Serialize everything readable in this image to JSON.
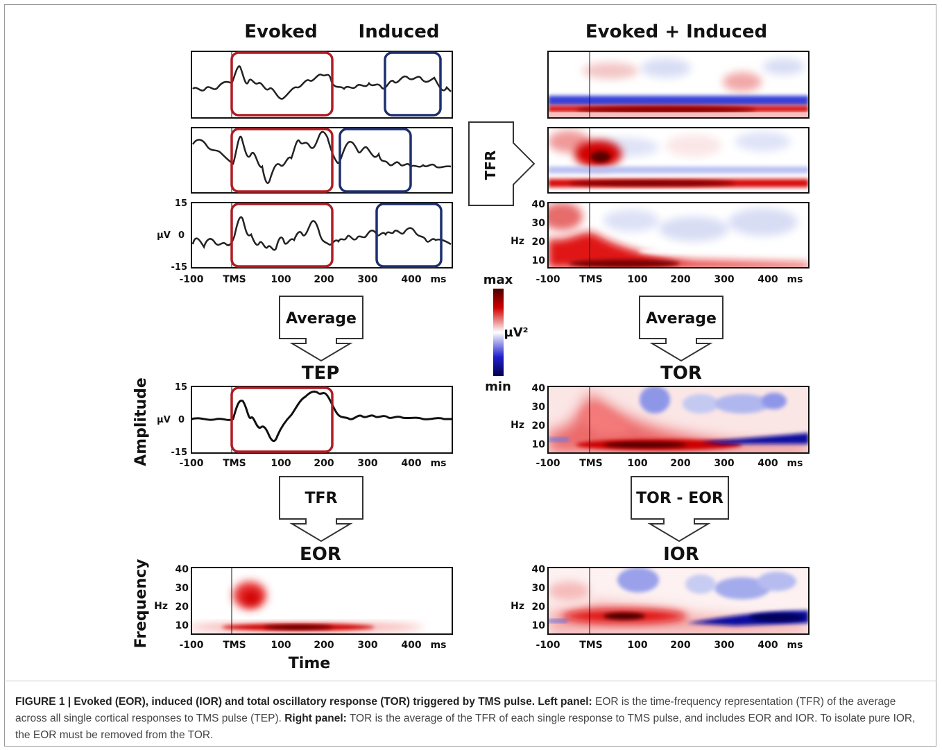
{
  "headers": {
    "evoked": "Evoked",
    "induced": "Induced",
    "evoked_induced": "Evoked + Induced"
  },
  "axis_ticks": {
    "time": [
      "-100",
      "TMS",
      "100",
      "200",
      "300",
      "400",
      "ms"
    ],
    "amp_top": "15",
    "amp_mid": "0",
    "amp_bot": "-15",
    "amp_unit": "µV",
    "freq": [
      "40",
      "30",
      "20",
      "10"
    ],
    "freq_unit": "Hz"
  },
  "flow": {
    "tfr_side": "TFR",
    "average_left": "Average",
    "average_right": "Average",
    "tfr_bottom": "TFR",
    "tor_minus_eor": "TOR - EOR"
  },
  "titles": {
    "tep": "TEP",
    "tor": "TOR",
    "eor": "EOR",
    "ior": "IOR"
  },
  "axis_labels": {
    "amplitude": "Amplitude",
    "frequency": "Frequency",
    "time": "Time"
  },
  "colorbar": {
    "max": "max",
    "min": "min",
    "unit": "µV²",
    "colors": [
      "#4a0000",
      "#d00000",
      "#ffffff",
      "#2020d0",
      "#00004a"
    ]
  },
  "colors": {
    "evoked_box": "#b01c22",
    "induced_box": "#1d2f6f",
    "trace": "#222222"
  },
  "caption": {
    "figure_label": "FIGURE 1 | Evoked (EOR), induced (IOR) and total oscillatory response (TOR) triggered by TMS pulse.",
    "left_label": "Left panel:",
    "left_text": "EOR is the time-frequency representation (TFR) of the average across all single cortical responses to TMS pulse (TEP).",
    "right_label": "Right panel:",
    "right_text": "TOR is the average of the TFR of each single response to TMS pulse, and includes EOR and IOR. To isolate pure IOR, the EOR must be removed from the TOR."
  }
}
